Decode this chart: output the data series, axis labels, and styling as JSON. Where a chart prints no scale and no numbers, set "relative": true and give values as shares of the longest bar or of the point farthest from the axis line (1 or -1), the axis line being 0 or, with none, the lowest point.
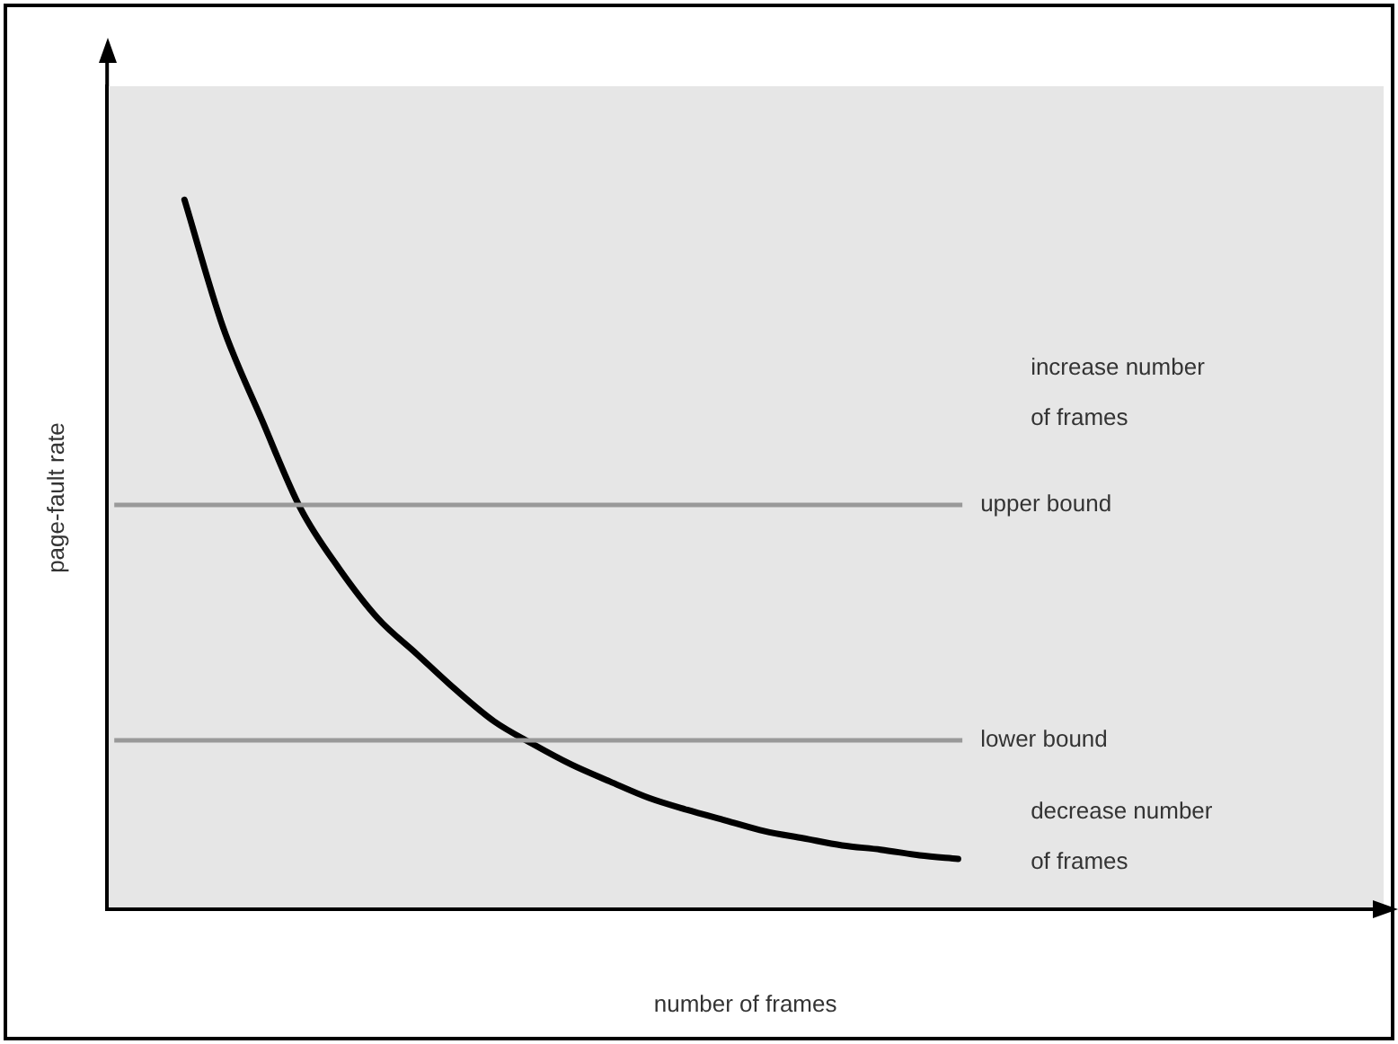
{
  "chart_data": {
    "type": "line",
    "relative": true,
    "xlabel": "number of frames",
    "ylabel": "page-fault rate",
    "categories": [
      null,
      null,
      null,
      null,
      null,
      null,
      null,
      null,
      null,
      null,
      null,
      null,
      null,
      null,
      null,
      null,
      null,
      null,
      null,
      null,
      null,
      null,
      null,
      null,
      null,
      null,
      null,
      null,
      null,
      null,
      null,
      null,
      null,
      null
    ],
    "series": [
      {
        "color": "#000000",
        "values": [
          null,
          null,
          1.0,
          0.82,
          0.69,
          0.565,
          0.48,
          0.41,
          0.36,
          0.31,
          0.265,
          0.233,
          0.204,
          0.18,
          0.157,
          0.14,
          0.125,
          0.11,
          0.1,
          0.09,
          0.084,
          0.076,
          0.071,
          null,
          null,
          null,
          null,
          null,
          null,
          null,
          null,
          null,
          null,
          null
        ]
      }
    ],
    "ref_lines": [
      {
        "axis": "y",
        "value": 0.57,
        "label": "upper bound",
        "color": "#999999"
      },
      {
        "axis": "y",
        "value": 0.238,
        "label": "lower bound",
        "color": "#999999"
      }
    ],
    "annotations": [
      "increase number of frames",
      "decrease number of frames"
    ],
    "marker": "none",
    "line_style": "solid",
    "grid": false,
    "legend": false
  }
}
